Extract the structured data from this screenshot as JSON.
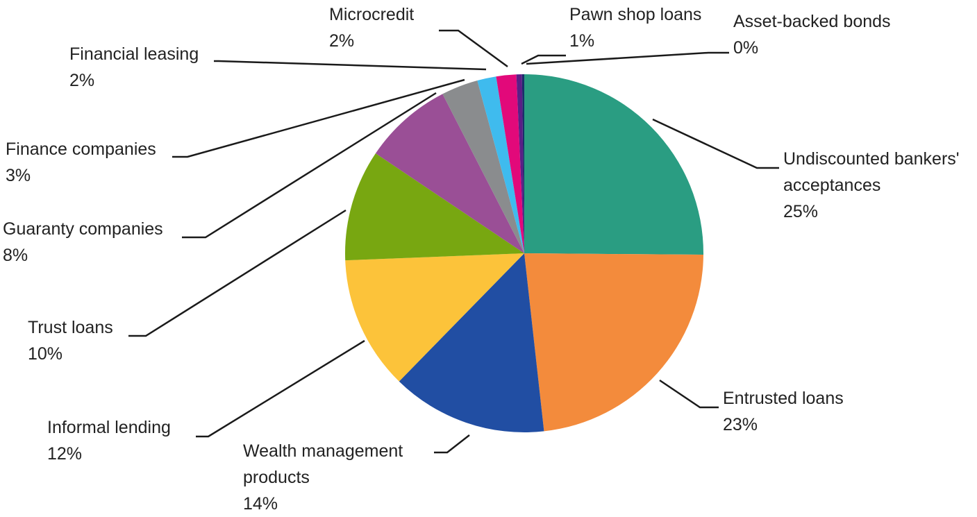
{
  "chart_data": {
    "type": "pie",
    "title": "",
    "slices": [
      {
        "label_lines": [
          "Undiscounted bankers'",
          "acceptances"
        ],
        "percent_label": "25%",
        "value": 25,
        "color": "#2a9d82",
        "key": "undiscounted"
      },
      {
        "label_lines": [
          "Entrusted loans"
        ],
        "percent_label": "23%",
        "value": 23,
        "color": "#f38b3c",
        "key": "entrusted"
      },
      {
        "label_lines": [
          "Wealth management",
          "products"
        ],
        "percent_label": "14%",
        "value": 14,
        "color": "#214ea3",
        "key": "wealth"
      },
      {
        "label_lines": [
          "Informal lending"
        ],
        "percent_label": "12%",
        "value": 12,
        "color": "#fcc33a",
        "key": "informal"
      },
      {
        "label_lines": [
          "Trust loans"
        ],
        "percent_label": "10%",
        "value": 10,
        "color": "#78a711",
        "key": "trust"
      },
      {
        "label_lines": [
          "Guaranty companies"
        ],
        "percent_label": "8%",
        "value": 8,
        "color": "#9a4f96",
        "key": "guaranty"
      },
      {
        "label_lines": [
          "Finance companies"
        ],
        "percent_label": "3%",
        "value": 3.3,
        "color": "#8a8c8e",
        "key": "finance"
      },
      {
        "label_lines": [
          "Financial leasing"
        ],
        "percent_label": "2%",
        "value": 1.7,
        "color": "#3fbbee",
        "key": "leasing"
      },
      {
        "label_lines": [
          "Microcredit"
        ],
        "percent_label": "2%",
        "value": 1.8,
        "color": "#e2097a",
        "key": "microcredit"
      },
      {
        "label_lines": [
          "Pawn shop loans"
        ],
        "percent_label": "1%",
        "value": 0.5,
        "color": "#5a1f86",
        "key": "pawn"
      },
      {
        "label_lines": [
          "Asset-backed  bonds"
        ],
        "percent_label": "0%",
        "value": 0.2,
        "color": "#1b2c6b",
        "key": "abs"
      }
    ]
  }
}
